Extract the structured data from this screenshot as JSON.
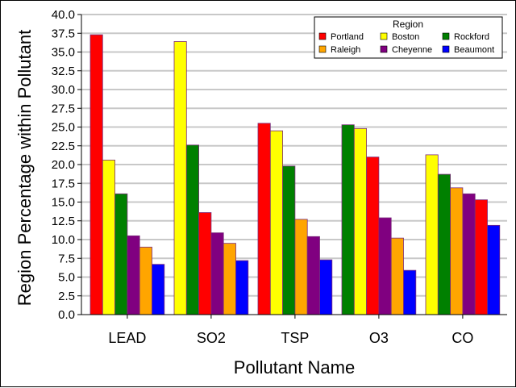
{
  "chart_data": {
    "type": "bar",
    "title": "",
    "xlabel": "Pollutant Name",
    "ylabel": "Region Percentage within Pollutant",
    "ylim": [
      0,
      40
    ],
    "yticks": [
      "0.0",
      "2.5",
      "5.0",
      "7.5",
      "10.0",
      "12.5",
      "15.0",
      "17.5",
      "20.0",
      "22.5",
      "25.0",
      "27.5",
      "30.0",
      "32.5",
      "35.0",
      "37.5",
      "40.0"
    ],
    "grid": true,
    "legend": {
      "title": "Region",
      "placement": "top-right",
      "entries": [
        "Portland",
        "Boston",
        "Rockford",
        "Raleigh",
        "Cheyenne",
        "Beaumont"
      ]
    },
    "colors": {
      "Portland": "#ff0000",
      "Boston": "#ffff00",
      "Rockford": "#008000",
      "Raleigh": "#ffa500",
      "Cheyenne": "#800080",
      "Beaumont": "#0000ff"
    },
    "groups": [
      {
        "category": "LEAD",
        "bars": [
          {
            "series": "Portland",
            "value": 37.3
          },
          {
            "series": "Boston",
            "value": 20.6
          },
          {
            "series": "Rockford",
            "value": 16.1
          },
          {
            "series": "Cheyenne",
            "value": 10.5
          },
          {
            "series": "Raleigh",
            "value": 9.0
          },
          {
            "series": "Beaumont",
            "value": 6.7
          }
        ]
      },
      {
        "category": "SO2",
        "bars": [
          {
            "series": "Boston",
            "value": 36.4
          },
          {
            "series": "Rockford",
            "value": 22.6
          },
          {
            "series": "Portland",
            "value": 13.6
          },
          {
            "series": "Cheyenne",
            "value": 10.9
          },
          {
            "series": "Raleigh",
            "value": 9.5
          },
          {
            "series": "Beaumont",
            "value": 7.2
          }
        ]
      },
      {
        "category": "TSP",
        "bars": [
          {
            "series": "Portland",
            "value": 25.5
          },
          {
            "series": "Boston",
            "value": 24.5
          },
          {
            "series": "Rockford",
            "value": 19.8
          },
          {
            "series": "Raleigh",
            "value": 12.7
          },
          {
            "series": "Cheyenne",
            "value": 10.4
          },
          {
            "series": "Beaumont",
            "value": 7.3
          }
        ]
      },
      {
        "category": "O3",
        "bars": [
          {
            "series": "Rockford",
            "value": 25.3
          },
          {
            "series": "Boston",
            "value": 24.8
          },
          {
            "series": "Portland",
            "value": 21.0
          },
          {
            "series": "Cheyenne",
            "value": 12.9
          },
          {
            "series": "Raleigh",
            "value": 10.2
          },
          {
            "series": "Beaumont",
            "value": 5.9
          }
        ]
      },
      {
        "category": "CO",
        "bars": [
          {
            "series": "Boston",
            "value": 21.3
          },
          {
            "series": "Rockford",
            "value": 18.7
          },
          {
            "series": "Raleigh",
            "value": 16.9
          },
          {
            "series": "Cheyenne",
            "value": 16.1
          },
          {
            "series": "Portland",
            "value": 15.3
          },
          {
            "series": "Beaumont",
            "value": 11.9
          }
        ]
      }
    ]
  }
}
